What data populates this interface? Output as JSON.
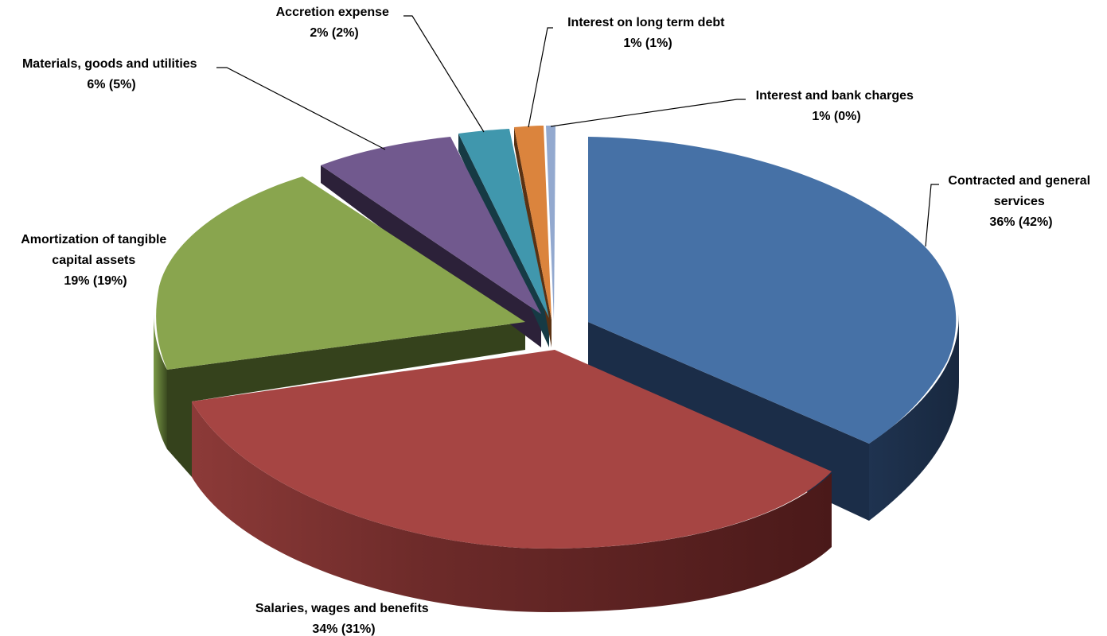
{
  "chart_data": {
    "type": "pie",
    "style": "3d-exploded",
    "slices": [
      {
        "label": "Contracted and general services",
        "value": 36,
        "prior_value": 42,
        "display": "36% (42%)",
        "color": "#4671A6",
        "side_color": "#1B2D48"
      },
      {
        "label": "Salaries, wages and benefits",
        "value": 34,
        "prior_value": 31,
        "display": "34% (31%)",
        "color": "#A64543",
        "side_color": "#481B1A"
      },
      {
        "label": "Amortization of tangible capital assets",
        "value": 19,
        "prior_value": 19,
        "display": "19% (19%)",
        "color": "#89A54E",
        "side_color": "#35421C"
      },
      {
        "label": "Materials, goods and utilities",
        "value": 6,
        "prior_value": 5,
        "display": "6% (5%)",
        "color": "#71598E",
        "side_color": "#2C2139"
      },
      {
        "label": "Accretion expense",
        "value": 2,
        "prior_value": 2,
        "display": "2% (2%)",
        "color": "#4097AD",
        "side_color": "#163A44"
      },
      {
        "label": "Interest on long term debt",
        "value": 1,
        "prior_value": 1,
        "display": "1% (1%)",
        "color": "#DB843D",
        "side_color": "#5A3213"
      },
      {
        "label": "Interest and bank charges",
        "value": 1,
        "prior_value": 0,
        "display": "1% (0%)",
        "color": "#93A9CF",
        "side_color": "#3A4862"
      }
    ]
  }
}
